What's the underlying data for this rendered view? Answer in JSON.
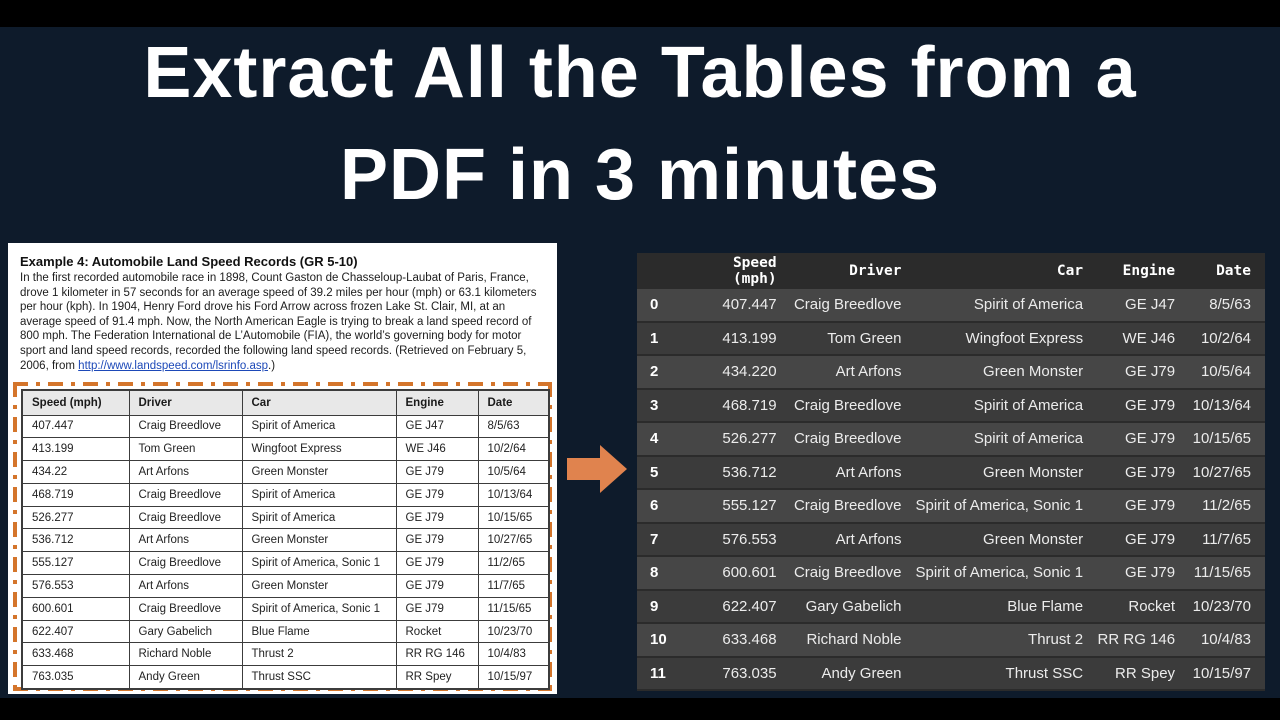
{
  "title": {
    "line1": "Extract All the Tables from a",
    "line2": "PDF in 3 minutes"
  },
  "pdf": {
    "heading": "Example 4: Automobile Land Speed Records (GR 5-10)",
    "body_before_link": "In the first recorded automobile race in 1898, Count Gaston de Chasseloup-Laubat of Paris, France, drove 1 kilometer in 57 seconds for an average speed of 39.2 miles per hour (mph) or 63.1 kilometers per hour (kph). In 1904, Henry Ford drove his Ford Arrow across frozen Lake St. Clair, MI, at an average speed of 91.4 mph. Now, the North American Eagle is trying to break a land speed record of 800 mph. The Federation International de L’Automobile (FIA), the world’s governing body for motor sport and land speed records, recorded the following land speed records. (Retrieved on February 5, 2006, from ",
    "link_text": "http://www.landspeed.com/lsrinfo.asp",
    "body_after_link": ".)",
    "table": {
      "headers": [
        "Speed (mph)",
        "Driver",
        "Car",
        "Engine",
        "Date"
      ],
      "rows": [
        [
          "407.447",
          "Craig Breedlove",
          "Spirit of America",
          "GE J47",
          "8/5/63"
        ],
        [
          "413.199",
          "Tom Green",
          "Wingfoot Express",
          "WE J46",
          "10/2/64"
        ],
        [
          "434.22",
          "Art Arfons",
          "Green Monster",
          "GE J79",
          "10/5/64"
        ],
        [
          "468.719",
          "Craig Breedlove",
          "Spirit of America",
          "GE J79",
          "10/13/64"
        ],
        [
          "526.277",
          "Craig Breedlove",
          "Spirit of America",
          "GE J79",
          "10/15/65"
        ],
        [
          "536.712",
          "Art Arfons",
          "Green Monster",
          "GE J79",
          "10/27/65"
        ],
        [
          "555.127",
          "Craig Breedlove",
          "Spirit of America, Sonic 1",
          "GE J79",
          "11/2/65"
        ],
        [
          "576.553",
          "Art Arfons",
          "Green Monster",
          "GE J79",
          "11/7/65"
        ],
        [
          "600.601",
          "Craig Breedlove",
          "Spirit of America, Sonic 1",
          "GE J79",
          "11/15/65"
        ],
        [
          "622.407",
          "Gary Gabelich",
          "Blue Flame",
          "Rocket",
          "10/23/70"
        ],
        [
          "633.468",
          "Richard Noble",
          "Thrust 2",
          "RR RG 146",
          "10/4/83"
        ],
        [
          "763.035",
          "Andy Green",
          "Thrust SSC",
          "RR Spey",
          "10/15/97"
        ]
      ]
    }
  },
  "dataframe": {
    "index_header": "",
    "headers": [
      "Speed (mph)",
      "Driver",
      "Car",
      "Engine",
      "Date"
    ],
    "rows": [
      {
        "index": "0",
        "cells": [
          "407.447",
          "Craig Breedlove",
          "Spirit of America",
          "GE J47",
          "8/5/63"
        ]
      },
      {
        "index": "1",
        "cells": [
          "413.199",
          "Tom Green",
          "Wingfoot Express",
          "WE J46",
          "10/2/64"
        ]
      },
      {
        "index": "2",
        "cells": [
          "434.220",
          "Art Arfons",
          "Green Monster",
          "GE J79",
          "10/5/64"
        ]
      },
      {
        "index": "3",
        "cells": [
          "468.719",
          "Craig Breedlove",
          "Spirit of America",
          "GE J79",
          "10/13/64"
        ]
      },
      {
        "index": "4",
        "cells": [
          "526.277",
          "Craig Breedlove",
          "Spirit of America",
          "GE J79",
          "10/15/65"
        ]
      },
      {
        "index": "5",
        "cells": [
          "536.712",
          "Art Arfons",
          "Green Monster",
          "GE J79",
          "10/27/65"
        ]
      },
      {
        "index": "6",
        "cells": [
          "555.127",
          "Craig Breedlove",
          "Spirit of America, Sonic 1",
          "GE J79",
          "11/2/65"
        ]
      },
      {
        "index": "7",
        "cells": [
          "576.553",
          "Art Arfons",
          "Green Monster",
          "GE J79",
          "11/7/65"
        ]
      },
      {
        "index": "8",
        "cells": [
          "600.601",
          "Craig Breedlove",
          "Spirit of America, Sonic 1",
          "GE J79",
          "11/15/65"
        ]
      },
      {
        "index": "9",
        "cells": [
          "622.407",
          "Gary Gabelich",
          "Blue Flame",
          "Rocket",
          "10/23/70"
        ]
      },
      {
        "index": "10",
        "cells": [
          "633.468",
          "Richard Noble",
          "Thrust 2",
          "RR RG 146",
          "10/4/83"
        ]
      },
      {
        "index": "11",
        "cells": [
          "763.035",
          "Andy Green",
          "Thrust SSC",
          "RR Spey",
          "10/15/97"
        ]
      }
    ]
  },
  "colors": {
    "background_navy": "#0e1b2b",
    "letterbox_black": "#000000",
    "title_white": "#ffffff",
    "arrow_orange": "#e0834e",
    "dash_border_orange": "#d4752b",
    "link_blue": "#1d49b8",
    "pdf_header_gray": "#e8e8e8",
    "df_bg_dark": "#2b2b2b",
    "df_row_even": "#464646",
    "df_row_odd": "#3b3b3b"
  }
}
